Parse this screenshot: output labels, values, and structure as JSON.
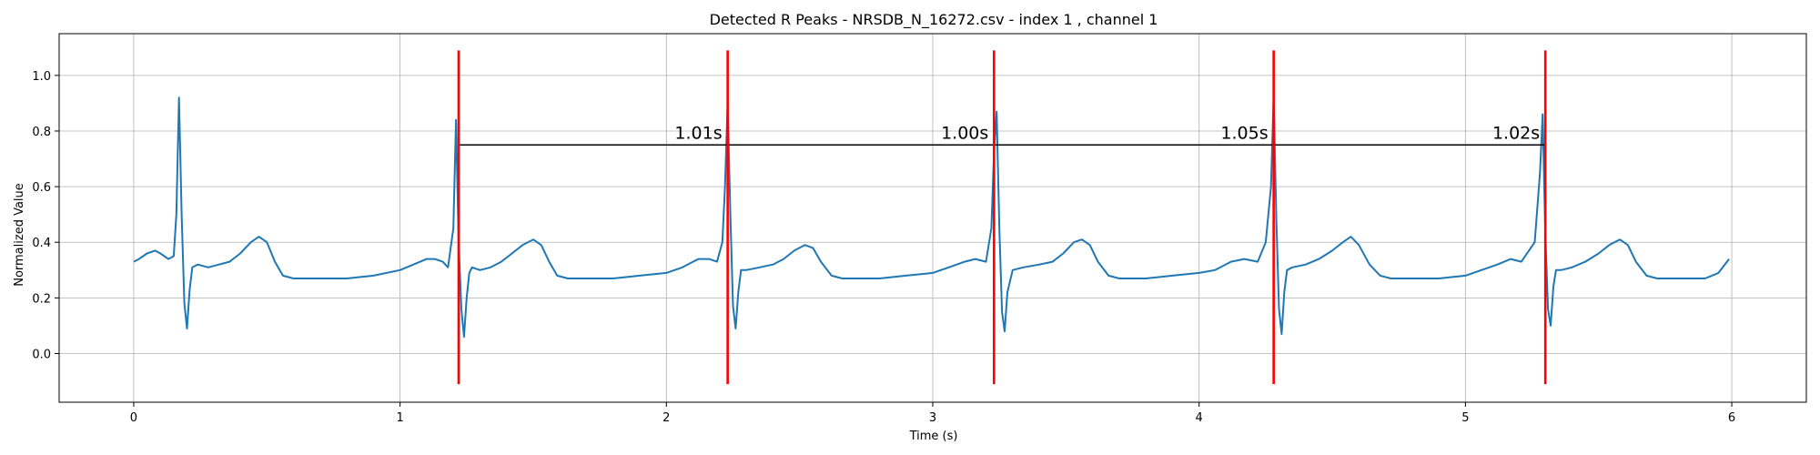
{
  "chart_data": {
    "type": "line",
    "title": "Detected R Peaks - NRSDB_N_16272.csv - index 1 , channel 1",
    "xlabel": "Time (s)",
    "ylabel": "Normalized Value",
    "xlim": [
      -0.28,
      6.28
    ],
    "ylim": [
      -0.175,
      1.15
    ],
    "xticks": [
      0,
      1,
      2,
      3,
      4,
      5,
      6
    ],
    "yticks": [
      0.0,
      0.2,
      0.4,
      0.6,
      0.8,
      1.0
    ],
    "xtick_labels": [
      "0",
      "1",
      "2",
      "3",
      "4",
      "5",
      "6"
    ],
    "ytick_labels": [
      "0.0",
      "0.2",
      "0.4",
      "0.6",
      "0.8",
      "1.0"
    ],
    "grid": true,
    "colors": {
      "signal": "#1f77b4",
      "peaks": "#ff0000",
      "intervals": "#000000"
    },
    "series": [
      {
        "x": [
          0.0,
          0.02,
          0.05,
          0.08,
          0.1,
          0.13,
          0.15,
          0.16,
          0.17,
          0.18,
          0.19,
          0.2,
          0.21,
          0.22,
          0.24,
          0.28,
          0.32,
          0.36,
          0.4,
          0.44,
          0.47,
          0.5,
          0.53,
          0.56,
          0.6,
          0.65,
          0.7,
          0.8,
          0.9,
          1.0,
          1.05,
          1.1,
          1.13,
          1.16,
          1.18,
          1.2,
          1.21,
          1.22,
          1.23,
          1.24,
          1.25,
          1.26,
          1.27,
          1.3,
          1.34,
          1.38,
          1.42,
          1.46,
          1.5,
          1.53,
          1.56,
          1.59,
          1.63,
          1.7,
          1.8,
          1.9,
          2.0,
          2.06,
          2.12,
          2.16,
          2.19,
          2.21,
          2.22,
          2.23,
          2.24,
          2.25,
          2.26,
          2.27,
          2.28,
          2.3,
          2.35,
          2.4,
          2.44,
          2.48,
          2.52,
          2.55,
          2.58,
          2.62,
          2.66,
          2.7,
          2.8,
          2.9,
          3.0,
          3.06,
          3.12,
          3.16,
          3.2,
          3.22,
          3.23,
          3.24,
          3.25,
          3.26,
          3.27,
          3.28,
          3.3,
          3.34,
          3.4,
          3.45,
          3.49,
          3.53,
          3.56,
          3.59,
          3.62,
          3.66,
          3.7,
          3.8,
          3.9,
          4.0,
          4.06,
          4.12,
          4.17,
          4.22,
          4.25,
          4.27,
          4.28,
          4.29,
          4.3,
          4.31,
          4.32,
          4.33,
          4.35,
          4.4,
          4.45,
          4.5,
          4.54,
          4.57,
          4.6,
          4.64,
          4.68,
          4.72,
          4.8,
          4.9,
          5.0,
          5.06,
          5.12,
          5.17,
          5.21,
          5.26,
          5.28,
          5.29,
          5.3,
          5.31,
          5.32,
          5.33,
          5.34,
          5.36,
          5.4,
          5.45,
          5.5,
          5.54,
          5.58,
          5.61,
          5.64,
          5.68,
          5.72,
          5.8,
          5.9,
          5.95,
          5.99
        ],
        "y": [
          0.33,
          0.34,
          0.36,
          0.37,
          0.36,
          0.34,
          0.35,
          0.5,
          0.92,
          0.5,
          0.18,
          0.09,
          0.23,
          0.31,
          0.32,
          0.31,
          0.32,
          0.33,
          0.36,
          0.4,
          0.42,
          0.4,
          0.33,
          0.28,
          0.27,
          0.27,
          0.27,
          0.27,
          0.28,
          0.3,
          0.32,
          0.34,
          0.34,
          0.33,
          0.31,
          0.45,
          0.84,
          0.4,
          0.16,
          0.06,
          0.2,
          0.29,
          0.31,
          0.3,
          0.31,
          0.33,
          0.36,
          0.39,
          0.41,
          0.39,
          0.33,
          0.28,
          0.27,
          0.27,
          0.27,
          0.28,
          0.29,
          0.31,
          0.34,
          0.34,
          0.33,
          0.4,
          0.6,
          0.9,
          0.5,
          0.17,
          0.09,
          0.22,
          0.3,
          0.3,
          0.31,
          0.32,
          0.34,
          0.37,
          0.39,
          0.38,
          0.33,
          0.28,
          0.27,
          0.27,
          0.27,
          0.28,
          0.29,
          0.31,
          0.33,
          0.34,
          0.33,
          0.45,
          0.72,
          0.87,
          0.45,
          0.15,
          0.08,
          0.22,
          0.3,
          0.31,
          0.32,
          0.33,
          0.36,
          0.4,
          0.41,
          0.39,
          0.33,
          0.28,
          0.27,
          0.27,
          0.28,
          0.29,
          0.3,
          0.33,
          0.34,
          0.33,
          0.4,
          0.6,
          0.92,
          0.48,
          0.16,
          0.07,
          0.22,
          0.3,
          0.31,
          0.32,
          0.34,
          0.37,
          0.4,
          0.42,
          0.39,
          0.32,
          0.28,
          0.27,
          0.27,
          0.27,
          0.28,
          0.3,
          0.32,
          0.34,
          0.33,
          0.4,
          0.65,
          0.86,
          0.43,
          0.16,
          0.1,
          0.24,
          0.3,
          0.3,
          0.31,
          0.33,
          0.36,
          0.39,
          0.41,
          0.39,
          0.33,
          0.28,
          0.27,
          0.27,
          0.27,
          0.29,
          0.34
        ]
      }
    ],
    "r_peaks": [
      1.22,
      2.23,
      3.23,
      4.28,
      5.3
    ],
    "peak_line_range": [
      -0.11,
      1.09
    ],
    "interval_y": 0.75,
    "interval_labels": [
      "1.01s",
      "1.00s",
      "1.05s",
      "1.02s"
    ]
  }
}
